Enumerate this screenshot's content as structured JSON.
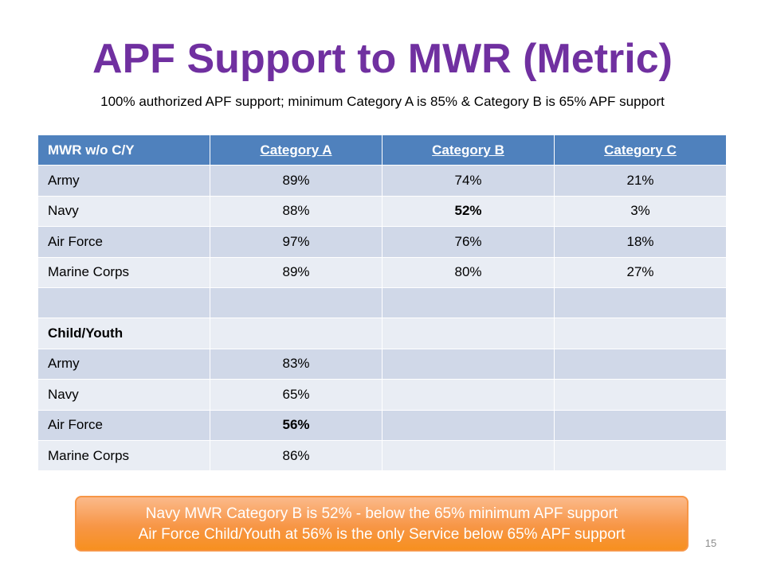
{
  "title": "APF Support to MWR (Metric)",
  "subtitle": "100% authorized APF support; minimum Category A is 85% & Category B is 65% APF support",
  "table": {
    "headers": [
      "MWR w/o C/Y",
      "Category A",
      "Category B",
      "Category C"
    ],
    "rows": [
      [
        "Army",
        "89%",
        "74%",
        "21%"
      ],
      [
        "Navy",
        "88%",
        "52%",
        "3%"
      ],
      [
        "Air Force",
        "97%",
        "76%",
        "18%"
      ],
      [
        "Marine Corps",
        "89%",
        "80%",
        "27%"
      ],
      [
        "",
        "",
        "",
        ""
      ],
      [
        "Child/Youth",
        "",
        "",
        ""
      ],
      [
        "Army",
        "83%",
        "",
        ""
      ],
      [
        "Navy",
        "65%",
        "",
        ""
      ],
      [
        "Air Force",
        "56%",
        "",
        ""
      ],
      [
        "Marine Corps",
        "86%",
        "",
        ""
      ]
    ],
    "highlight_color": "#ff0000",
    "header_color": "#4f81bd"
  },
  "callout": {
    "line1": "Navy MWR Category B is 52% - below the 65% minimum APF support",
    "line2": "Air Force Child/Youth at 56% is the only Service below 65% APF support"
  },
  "slide_number": "15",
  "colors": {
    "title": "#7030a0",
    "callout": "#f79646"
  }
}
